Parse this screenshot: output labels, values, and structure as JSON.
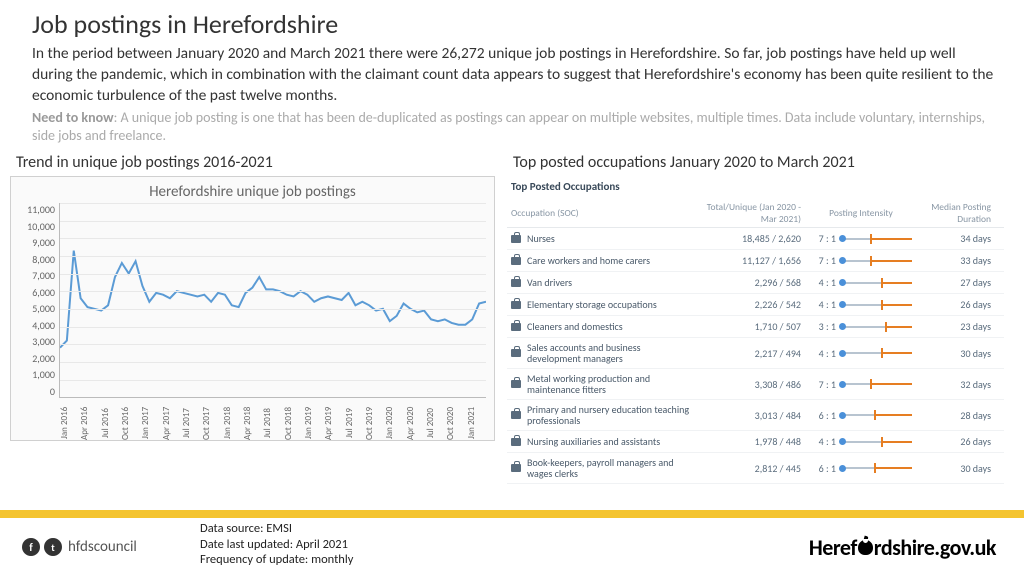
{
  "title": "Job postings in Herefordshire",
  "intro": "In the period between January 2020 and March 2021 there were 26,272 unique job postings in Herefordshire. So far, job postings have held up well during the pandemic, which in combination with the claimant count data appears to suggest that Herefordshire's economy has been quite resilient to the economic turbulence of the past twelve months.",
  "need_label": "Need to know",
  "need_text": ":  A unique job posting is one that has been de-duplicated as postings can appear on multiple websites, multiple times.  Data include voluntary, internships, side jobs and freelance.",
  "trend_title": "Trend in unique job postings 2016-2021",
  "table_title": "Top posted occupations January 2020 to March 2021",
  "chart": {
    "title": "Herefordshire unique  job postings",
    "y_ticks": [
      "11,000",
      "10,000",
      "9,000",
      "8,000",
      "7,000",
      "6,000",
      "5,000",
      "4,000",
      "3,000",
      "2,000",
      "1,000",
      "0"
    ],
    "y_max": 11000,
    "x_labels": [
      "Jan 2016",
      "Apr 2016",
      "Jul 2016",
      "Oct 2016",
      "Jan 2017",
      "Apr 2017",
      "Jul 2017",
      "Oct 2017",
      "Jan 2018",
      "Apr 2018",
      "Jul 2018",
      "Oct 2018",
      "Jan 2019",
      "Apr 2019",
      "Jul 2019",
      "Oct 2019",
      "Jan 2020",
      "Apr 2020",
      "Jul 2020",
      "Oct 2020",
      "Jan 2021"
    ],
    "values": [
      2800,
      3200,
      8300,
      5600,
      5100,
      5000,
      4900,
      5200,
      6800,
      7600,
      7000,
      7700,
      6300,
      5400,
      5900,
      5800,
      5600,
      6000,
      5900,
      5800,
      5700,
      5800,
      5400,
      5900,
      5800,
      5200,
      5100,
      5900,
      6200,
      6800,
      6100,
      6100,
      6000,
      5800,
      5700,
      6000,
      5800,
      5400,
      5600,
      5700,
      5600,
      5500,
      5900,
      5200,
      5400,
      5200,
      4900,
      5000,
      4300,
      4600,
      5300,
      5000,
      4800,
      4900,
      4400,
      4300,
      4400,
      4200,
      4100,
      4100,
      4400,
      5300,
      5400
    ],
    "line_color": "#5b9bd5",
    "grid_color": "#e8e8e8",
    "line_width": 2
  },
  "table": {
    "caption": "Top Posted Occupations",
    "headers": [
      "Occupation (SOC)",
      "Total/Unique (Jan 2020 - Mar 2021)",
      "Posting Intensity",
      "Median Posting Duration"
    ],
    "rows": [
      {
        "occ": "Nurses",
        "total": "18,485 / 2,620",
        "ratio": "7 : 1",
        "int_pos": 0.65,
        "handle": 0.4,
        "dur": "34 days"
      },
      {
        "occ": "Care workers and home carers",
        "total": "11,127 / 1,656",
        "ratio": "7 : 1",
        "int_pos": 0.65,
        "handle": 0.4,
        "dur": "33 days"
      },
      {
        "occ": "Van drivers",
        "total": "2,296 / 568",
        "ratio": "4 : 1",
        "int_pos": 0.5,
        "handle": 0.55,
        "dur": "27 days"
      },
      {
        "occ": "Elementary storage occupations",
        "total": "2,226 / 542",
        "ratio": "4 : 1",
        "int_pos": 0.5,
        "handle": 0.55,
        "dur": "26 days"
      },
      {
        "occ": "Cleaners and domestics",
        "total": "1,710 / 507",
        "ratio": "3 : 1",
        "int_pos": 0.42,
        "handle": 0.62,
        "dur": "23 days"
      },
      {
        "occ": "Sales accounts and business development managers",
        "total": "2,217 / 494",
        "ratio": "4 : 1",
        "int_pos": 0.5,
        "handle": 0.55,
        "dur": "30 days"
      },
      {
        "occ": "Metal working production and maintenance fitters",
        "total": "3,308 / 486",
        "ratio": "7 : 1",
        "int_pos": 0.65,
        "handle": 0.4,
        "dur": "32 days"
      },
      {
        "occ": "Primary and nursery education teaching professionals",
        "total": "3,013 / 484",
        "ratio": "6 : 1",
        "int_pos": 0.6,
        "handle": 0.45,
        "dur": "28 days"
      },
      {
        "occ": "Nursing auxiliaries and assistants",
        "total": "1,978 / 448",
        "ratio": "4 : 1",
        "int_pos": 0.5,
        "handle": 0.55,
        "dur": "26 days"
      },
      {
        "occ": "Book-keepers, payroll managers and wages clerks",
        "total": "2,812 / 445",
        "ratio": "6 : 1",
        "int_pos": 0.6,
        "handle": 0.45,
        "dur": "30 days"
      },
      {
        "occ": "",
        "total": "",
        "ratio": "",
        "int_pos": 0,
        "handle": 0,
        "dur": ""
      }
    ],
    "intensity_blue": "#4a90d9",
    "intensity_orange": "#e67e22"
  },
  "footer": {
    "handle": "hfdscouncil",
    "meta1": "Data source:  EMSI",
    "meta2": "Date last updated:  April 2021",
    "meta3": "Frequency of update:  monthly",
    "brand_pre": "Heref",
    "brand_post": "rdshire.gov.uk"
  }
}
